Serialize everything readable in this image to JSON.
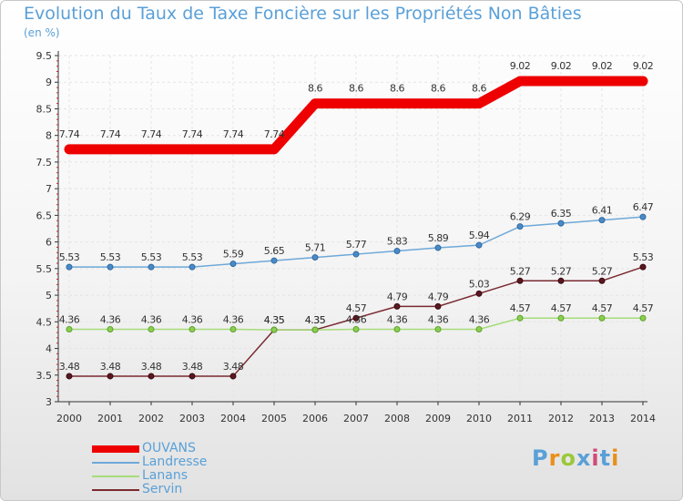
{
  "title": "Evolution du Taux de Taxe Foncière sur les Propriétés Non Bâties",
  "unit": "(en %)",
  "brand": [
    "P",
    "r",
    "o",
    "x",
    "i",
    "t",
    "i"
  ],
  "chart_data": {
    "type": "line",
    "title": "Evolution du Taux de Taxe Foncière sur les Propriétés Non Bâties",
    "ylabel": "(en %)",
    "xlabel": "",
    "ylim": [
      3,
      9.5
    ],
    "yticks": [
      3,
      3.5,
      4,
      4.5,
      5,
      5.5,
      6,
      6.5,
      7,
      7.5,
      8,
      8.5,
      9,
      9.5
    ],
    "x": [
      2000,
      2001,
      2002,
      2003,
      2004,
      2005,
      2006,
      2007,
      2008,
      2009,
      2010,
      2011,
      2012,
      2013,
      2014
    ],
    "legend_position": "bottom-left",
    "series": [
      {
        "name": "OUVANS",
        "color": "#ee0000",
        "values": [
          7.74,
          7.74,
          7.74,
          7.74,
          7.74,
          7.74,
          8.6,
          8.6,
          8.6,
          8.6,
          8.6,
          9.02,
          9.02,
          9.02,
          9.02
        ],
        "labels": [
          "7.74",
          "7.74",
          "7.74",
          "7.74",
          "7.74",
          "7.74",
          "8.6",
          "8.6",
          "8.6",
          "8.6",
          "8.6",
          "9.02",
          "9.02",
          "9.02",
          "9.02"
        ]
      },
      {
        "name": "Landresse",
        "color": "#6ea8d8",
        "values": [
          5.53,
          5.53,
          5.53,
          5.53,
          5.59,
          5.65,
          5.71,
          5.77,
          5.83,
          5.89,
          5.94,
          6.29,
          6.35,
          6.41,
          6.47
        ],
        "labels": [
          "5.53",
          "5.53",
          "5.53",
          "5.53",
          "5.59",
          "5.65",
          "5.71",
          "5.77",
          "5.83",
          "5.89",
          "5.94",
          "6.29",
          "6.35",
          "6.41",
          "6.47"
        ]
      },
      {
        "name": "Lanans",
        "color": "#a6dc7a",
        "values": [
          4.36,
          4.36,
          4.36,
          4.36,
          4.36,
          4.35,
          4.35,
          4.36,
          4.36,
          4.36,
          4.36,
          4.57,
          4.57,
          4.57,
          4.57
        ],
        "labels": [
          "4.36",
          "4.36",
          "4.36",
          "4.36",
          "4.36",
          "4.35",
          "4.35",
          "4.36",
          "4.36",
          "4.36",
          "4.36",
          "4.57",
          "4.57",
          "4.57",
          "4.57"
        ]
      },
      {
        "name": "Servin",
        "color": "#7a2a30",
        "values": [
          3.48,
          3.48,
          3.48,
          3.48,
          3.48,
          4.35,
          4.35,
          4.57,
          4.79,
          4.79,
          5.03,
          5.27,
          5.27,
          5.27,
          5.53
        ],
        "labels": [
          "3.48",
          "3.48",
          "3.48",
          "3.48",
          "3.48",
          "4.35",
          "4.35",
          "4.57",
          "4.79",
          "4.79",
          "5.03",
          "5.27",
          "5.27",
          "5.27",
          "5.53"
        ]
      }
    ]
  }
}
